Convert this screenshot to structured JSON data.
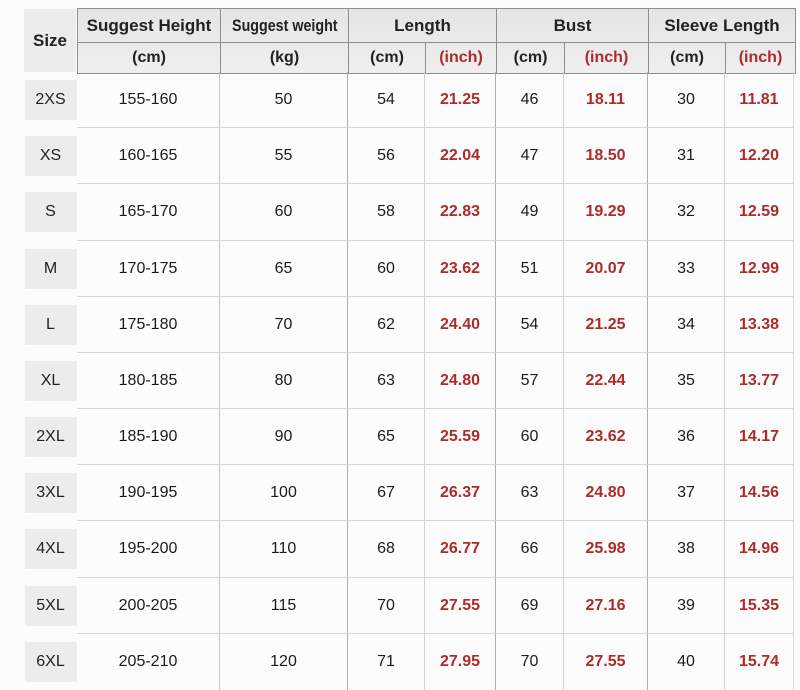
{
  "colors": {
    "accent_red": "#ad2b2b",
    "header_bg": "#e8e8e8",
    "size_cell_bg": "#ececec",
    "grid_line_dark": "#8e8e8e",
    "grid_line_light": "#d2d2d2",
    "text": "#1b1b1b"
  },
  "chart_data": {
    "type": "table",
    "title": "Garment size chart",
    "header": {
      "size": "Size",
      "groups": [
        {
          "label": "Suggest Height",
          "units": [
            "(cm)"
          ]
        },
        {
          "label": "Suggest weight",
          "units": [
            "(kg)"
          ]
        },
        {
          "label": "Length",
          "units": [
            "(cm)",
            "(inch)"
          ]
        },
        {
          "label": "Bust",
          "units": [
            "(cm)",
            "(inch)"
          ]
        },
        {
          "label": "Sleeve Length",
          "units": [
            "(cm)",
            "(inch)"
          ]
        }
      ]
    },
    "rows": [
      {
        "size": "2XS",
        "height_cm": "155-160",
        "weight_kg": "50",
        "length_cm": "54",
        "length_inch": "21.25",
        "bust_cm": "46",
        "bust_inch": "18.11",
        "sleeve_cm": "30",
        "sleeve_inch": "11.81"
      },
      {
        "size": "XS",
        "height_cm": "160-165",
        "weight_kg": "55",
        "length_cm": "56",
        "length_inch": "22.04",
        "bust_cm": "47",
        "bust_inch": "18.50",
        "sleeve_cm": "31",
        "sleeve_inch": "12.20"
      },
      {
        "size": "S",
        "height_cm": "165-170",
        "weight_kg": "60",
        "length_cm": "58",
        "length_inch": "22.83",
        "bust_cm": "49",
        "bust_inch": "19.29",
        "sleeve_cm": "32",
        "sleeve_inch": "12.59"
      },
      {
        "size": "M",
        "height_cm": "170-175",
        "weight_kg": "65",
        "length_cm": "60",
        "length_inch": "23.62",
        "bust_cm": "51",
        "bust_inch": "20.07",
        "sleeve_cm": "33",
        "sleeve_inch": "12.99"
      },
      {
        "size": "L",
        "height_cm": "175-180",
        "weight_kg": "70",
        "length_cm": "62",
        "length_inch": "24.40",
        "bust_cm": "54",
        "bust_inch": "21.25",
        "sleeve_cm": "34",
        "sleeve_inch": "13.38"
      },
      {
        "size": "XL",
        "height_cm": "180-185",
        "weight_kg": "80",
        "length_cm": "63",
        "length_inch": "24.80",
        "bust_cm": "57",
        "bust_inch": "22.44",
        "sleeve_cm": "35",
        "sleeve_inch": "13.77"
      },
      {
        "size": "2XL",
        "height_cm": "185-190",
        "weight_kg": "90",
        "length_cm": "65",
        "length_inch": "25.59",
        "bust_cm": "60",
        "bust_inch": "23.62",
        "sleeve_cm": "36",
        "sleeve_inch": "14.17"
      },
      {
        "size": "3XL",
        "height_cm": "190-195",
        "weight_kg": "100",
        "length_cm": "67",
        "length_inch": "26.37",
        "bust_cm": "63",
        "bust_inch": "24.80",
        "sleeve_cm": "37",
        "sleeve_inch": "14.56"
      },
      {
        "size": "4XL",
        "height_cm": "195-200",
        "weight_kg": "110",
        "length_cm": "68",
        "length_inch": "26.77",
        "bust_cm": "66",
        "bust_inch": "25.98",
        "sleeve_cm": "38",
        "sleeve_inch": "14.96"
      },
      {
        "size": "5XL",
        "height_cm": "200-205",
        "weight_kg": "115",
        "length_cm": "70",
        "length_inch": "27.55",
        "bust_cm": "69",
        "bust_inch": "27.16",
        "sleeve_cm": "39",
        "sleeve_inch": "15.35"
      },
      {
        "size": "6XL",
        "height_cm": "205-210",
        "weight_kg": "120",
        "length_cm": "71",
        "length_inch": "27.95",
        "bust_cm": "70",
        "bust_inch": "27.55",
        "sleeve_cm": "40",
        "sleeve_inch": "15.74"
      }
    ]
  }
}
